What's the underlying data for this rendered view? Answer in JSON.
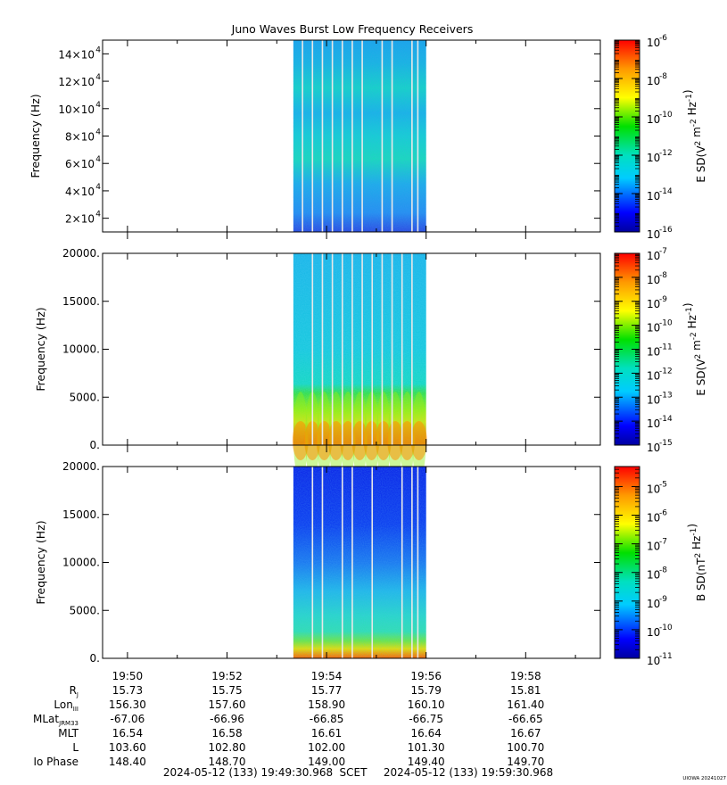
{
  "title": "Juno Waves Burst Low Frequency Receivers",
  "credit": "UIOWA 20241027",
  "colors": {
    "axis": "#000000",
    "line": "#e8e8e8"
  },
  "chart_data": [
    {
      "type": "heatmap",
      "name": "panel-1",
      "ylabel": "Frequency (Hz)",
      "ylim": [
        10000,
        150000
      ],
      "yticks": [
        {
          "v": 20000,
          "b": "2×10",
          "e": "4"
        },
        {
          "v": 40000,
          "b": "4×10",
          "e": "4"
        },
        {
          "v": 60000,
          "b": "6×10",
          "e": "4"
        },
        {
          "v": 80000,
          "b": "8×10",
          "e": "4"
        },
        {
          "v": 100000,
          "b": "10×10",
          "e": "4"
        },
        {
          "v": 120000,
          "b": "12×10",
          "e": "4"
        },
        {
          "v": 140000,
          "b": "14×10",
          "e": "4"
        }
      ],
      "data_span": [
        "19:53:20",
        "19:56:00"
      ],
      "gaps": [
        "19:53:31",
        "19:53:43",
        "19:53:55",
        "19:54:07",
        "19:54:19",
        "19:54:31",
        "19:54:43",
        "19:55:07",
        "19:55:19",
        "19:55:43",
        "19:55:50"
      ],
      "colorbar": {
        "label_base": "E SD(V",
        "label_sup1": "2",
        "label_mid": " m",
        "label_sup2": "-2",
        "label_mid2": " Hz",
        "label_sup3": "-1",
        "label_end": ")",
        "range_exp": [
          -16,
          -6
        ],
        "ticks": [
          "-16",
          "-14",
          "-12",
          "-10",
          "-8",
          "-6"
        ]
      }
    },
    {
      "type": "heatmap",
      "name": "panel-2",
      "ylabel": "Frequency (Hz)",
      "ylim": [
        0,
        20000
      ],
      "yticks": [
        {
          "v": 0,
          "t": "0."
        },
        {
          "v": 5000,
          "t": "5000."
        },
        {
          "v": 10000,
          "t": "10000."
        },
        {
          "v": 15000,
          "t": "15000."
        },
        {
          "v": 20000,
          "t": "20000."
        }
      ],
      "data_span": [
        "19:53:20",
        "19:56:00"
      ],
      "gaps": [
        "19:53:43",
        "19:53:55",
        "19:54:07",
        "19:54:19",
        "19:54:31",
        "19:54:43",
        "19:54:55",
        "19:55:07",
        "19:55:19",
        "19:55:31",
        "19:55:43"
      ],
      "colorbar": {
        "label_base": "E SD(V",
        "label_sup1": "2",
        "label_mid": " m",
        "label_sup2": "-2",
        "label_mid2": " Hz",
        "label_sup3": "-1",
        "label_end": ")",
        "range_exp": [
          -15,
          -7
        ],
        "ticks": [
          "-15",
          "-14",
          "-13",
          "-12",
          "-11",
          "-10",
          "-9",
          "-8",
          "-7"
        ]
      }
    },
    {
      "type": "heatmap",
      "name": "panel-3",
      "ylabel": "Frequency (Hz)",
      "ylim": [
        0,
        20000
      ],
      "yticks": [
        {
          "v": 0,
          "t": "0."
        },
        {
          "v": 5000,
          "t": "5000."
        },
        {
          "v": 10000,
          "t": "10000."
        },
        {
          "v": 15000,
          "t": "15000."
        },
        {
          "v": 20000,
          "t": "20000."
        }
      ],
      "data_span": [
        "19:53:20",
        "19:56:00"
      ],
      "gaps": [
        "19:53:43",
        "19:53:55",
        "19:54:19",
        "19:54:31",
        "19:54:55",
        "19:55:31",
        "19:55:43",
        "19:55:50"
      ],
      "colorbar": {
        "label_base": "B SD(nT",
        "label_sup1": "2",
        "label_mid": " Hz",
        "label_sup2": "-1",
        "label_mid2": "",
        "label_sup3": "",
        "label_end": ")",
        "range_exp": [
          -11,
          -4.3
        ],
        "ticks": [
          "-11",
          "-10",
          "-9",
          "-8",
          "-7",
          "-6",
          "-5"
        ]
      }
    }
  ],
  "time_axis": {
    "start": "19:49:30",
    "end": "19:59:30",
    "major_ticks": [
      "19:50",
      "19:52",
      "19:54",
      "19:56",
      "19:58"
    ],
    "minor_ticks": [
      "19:51",
      "19:53",
      "19:55",
      "19:57",
      "19:59"
    ]
  },
  "ephemeris": {
    "rows": [
      {
        "label": "R",
        "sub": "J",
        "values": [
          "15.73",
          "15.75",
          "15.77",
          "15.79",
          "15.81"
        ]
      },
      {
        "label": "Lon",
        "sub": "III",
        "values": [
          "156.30",
          "157.60",
          "158.90",
          "160.10",
          "161.40"
        ]
      },
      {
        "label": "MLat",
        "sub": "JRM33",
        "values": [
          "-67.06",
          "-66.96",
          "-66.85",
          "-66.75",
          "-66.65"
        ]
      },
      {
        "label": "MLT",
        "sub": "",
        "values": [
          "16.54",
          "16.58",
          "16.61",
          "16.64",
          "16.67"
        ]
      },
      {
        "label": "L",
        "sub": "",
        "values": [
          "103.60",
          "102.80",
          "102.00",
          "101.30",
          "100.70"
        ]
      },
      {
        "label": "Io Phase",
        "sub": "",
        "values": [
          "148.40",
          "148.70",
          "149.00",
          "149.40",
          "149.70"
        ]
      }
    ]
  },
  "footer": {
    "start": "2024-05-12 (133) 19:49:30.968",
    "scet": "SCET",
    "end": "2024-05-12 (133) 19:59:30.968"
  }
}
